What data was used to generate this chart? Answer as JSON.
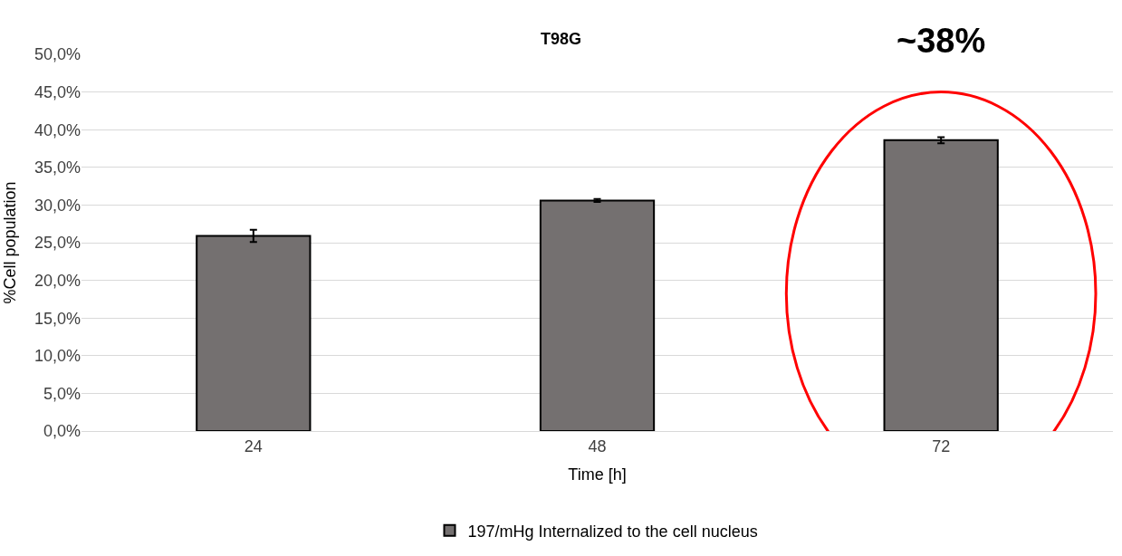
{
  "chart_data": {
    "type": "bar",
    "title": "T98G",
    "xlabel": "Time [h]",
    "ylabel": "%Cell population",
    "categories": [
      "24",
      "48",
      "72"
    ],
    "series": [
      {
        "name": "197/mHg Internalized to the cell nucleus",
        "color": "#747070",
        "values": [
          25.9,
          30.6,
          38.6
        ],
        "errors": [
          0.8,
          0.2,
          0.4
        ]
      }
    ],
    "ylim": [
      0,
      50
    ],
    "yticks": [
      {
        "value": 0,
        "label": "0,0%"
      },
      {
        "value": 5,
        "label": "5,0%"
      },
      {
        "value": 10,
        "label": "10,0%"
      },
      {
        "value": 15,
        "label": "15,0%"
      },
      {
        "value": 20,
        "label": "20,0%"
      },
      {
        "value": 25,
        "label": "25,0%"
      },
      {
        "value": 30,
        "label": "30,0%"
      },
      {
        "value": 35,
        "label": "35,0%"
      },
      {
        "value": 40,
        "label": "40,0%"
      },
      {
        "value": 45,
        "label": "45,0%"
      },
      {
        "value": 50,
        "label": "50,0%"
      }
    ],
    "grid": "y",
    "legend": "bottom",
    "annotations": [
      {
        "text": "~38%",
        "x": "72",
        "y": 38.6
      }
    ]
  }
}
